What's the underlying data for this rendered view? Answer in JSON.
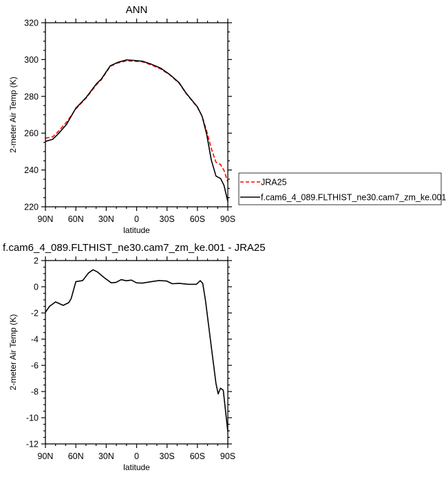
{
  "chart_data": [
    {
      "type": "line",
      "title": "ANN",
      "xlabel": "latitude",
      "ylabel": "2-meter Air Temp (K)",
      "xlim": [
        90,
        -90
      ],
      "ylim": [
        220,
        320
      ],
      "xticks": [
        90,
        60,
        30,
        0,
        -30,
        -60,
        -90
      ],
      "xtick_labels": [
        "90N",
        "60N",
        "30N",
        "0",
        "30S",
        "60S",
        "90S"
      ],
      "yticks": [
        220,
        240,
        260,
        280,
        300,
        320
      ],
      "ytick_labels": [
        "220",
        "240",
        "260",
        "280",
        "300",
        "320"
      ],
      "legend_placement": "right-outside",
      "series": [
        {
          "name": "JRA25",
          "color": "#ff0000",
          "dash": "dashed",
          "x": [
            90,
            82.7,
            77,
            69,
            60,
            50,
            39.7,
            35,
            26,
            19,
            10,
            3.4,
            -5.7,
            -14.8,
            -23.8,
            -32.9,
            -42,
            -48.8,
            -60,
            -64.6,
            -69.2,
            -73.7,
            -78.3,
            -82.8,
            -86.2,
            -90
          ],
          "y": [
            257.3,
            258.0,
            261.1,
            266.1,
            273.2,
            279.0,
            286.3,
            289.0,
            296.3,
            298.1,
            299.3,
            299.1,
            298.8,
            297.0,
            294.9,
            291.6,
            287.1,
            281.6,
            274.1,
            269.3,
            261.0,
            251.7,
            244.2,
            243.0,
            239.8,
            233.5
          ]
        },
        {
          "name": "f.cam6_4_089.FLTHIST_ne30.cam7_zm_ke.001",
          "color": "#000000",
          "dash": "solid",
          "x": [
            90,
            82.7,
            77,
            69,
            60,
            50,
            39.7,
            35,
            26,
            19,
            10,
            3.4,
            -5.7,
            -14.8,
            -23.8,
            -32.9,
            -42,
            -48.8,
            -60,
            -64.6,
            -69.2,
            -73.7,
            -78.3,
            -82.8,
            -86.2,
            -90
          ],
          "y": [
            255.5,
            256.7,
            259.8,
            264.9,
            273.6,
            279.3,
            286.8,
            289.3,
            296.6,
            298.4,
            299.8,
            299.6,
            299.1,
            297.4,
            295.3,
            291.8,
            287.4,
            281.8,
            274.3,
            269.2,
            259.2,
            245.4,
            236.7,
            235.4,
            231.7,
            222.9
          ]
        }
      ]
    },
    {
      "type": "line",
      "title": "f.cam6_4_089.FLTHIST_ne30.cam7_zm_ke.001 - JRA25",
      "xlabel": "latitude",
      "ylabel": "2-meter Air Temp (K)",
      "xlim": [
        90,
        -90
      ],
      "ylim": [
        -12,
        2
      ],
      "xticks": [
        90,
        60,
        30,
        0,
        -30,
        -60,
        -90
      ],
      "xtick_labels": [
        "90N",
        "60N",
        "30N",
        "0",
        "30S",
        "60S",
        "90S"
      ],
      "yticks": [
        -12,
        -10,
        -8,
        -6,
        -4,
        -2,
        0,
        2
      ],
      "ytick_labels": [
        "-12",
        "-10",
        "-8",
        "-6",
        "-4",
        "-2",
        "0",
        "2"
      ],
      "series": [
        {
          "color": "#000000",
          "dash": "solid",
          "x": [
            90,
            86,
            80,
            72.5,
            66.9,
            64.6,
            60,
            53.3,
            47.6,
            43,
            38.5,
            31.7,
            25,
            20.4,
            15.2,
            10,
            5.2,
            0,
            -5.7,
            -14.8,
            -21.6,
            -29.5,
            -35.2,
            -42,
            -51,
            -59,
            -62.8,
            -65.3,
            -68,
            -73.7,
            -78.3,
            -80.5,
            -82.8,
            -85.5,
            -90
          ],
          "y": [
            -1.95,
            -1.5,
            -1.16,
            -1.42,
            -1.21,
            -0.9,
            0.39,
            0.47,
            1.04,
            1.3,
            1.12,
            0.68,
            0.3,
            0.33,
            0.54,
            0.46,
            0.51,
            0.3,
            0.28,
            0.39,
            0.47,
            0.44,
            0.23,
            0.26,
            0.19,
            0.19,
            0.47,
            0.25,
            -1.07,
            -4.58,
            -7.39,
            -8.18,
            -7.74,
            -7.9,
            -11.07
          ]
        }
      ]
    }
  ]
}
